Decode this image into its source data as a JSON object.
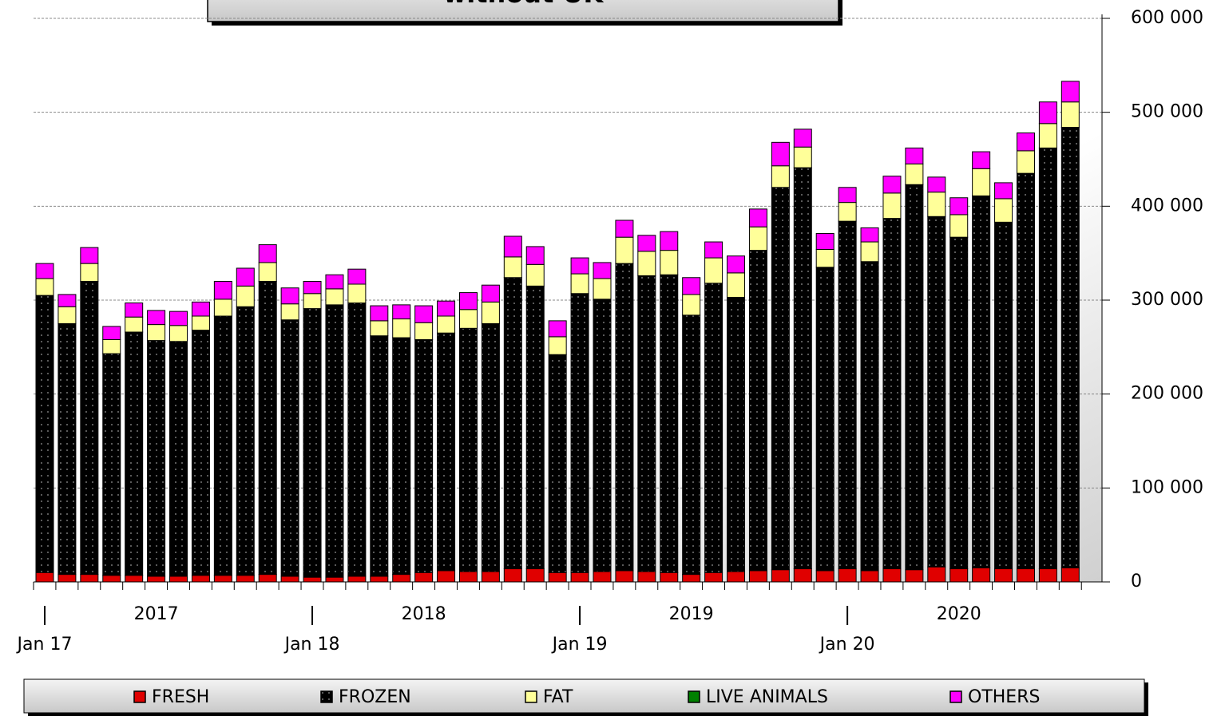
{
  "chart_data": {
    "type": "stacked_bar",
    "title": "without UK",
    "categories": [
      "Jan 17",
      null,
      null,
      null,
      null,
      null,
      null,
      null,
      null,
      null,
      null,
      null,
      "Jan 18",
      null,
      null,
      null,
      null,
      null,
      null,
      null,
      null,
      null,
      null,
      null,
      "Jan 19",
      null,
      null,
      null,
      null,
      null,
      null,
      null,
      null,
      null,
      null,
      null,
      "Jan 20",
      null,
      null,
      null,
      null,
      null,
      null,
      null,
      null,
      null,
      null
    ],
    "year_labels": [
      "2017",
      "2018",
      "2019",
      "2020"
    ],
    "series": [
      {
        "name": "FRESH",
        "color": "#e00000",
        "values": [
          10000,
          8000,
          8000,
          7000,
          7000,
          6000,
          6000,
          7000,
          7000,
          7000,
          8000,
          6000,
          5000,
          5000,
          6000,
          6000,
          8000,
          10000,
          12000,
          11000,
          11000,
          14000,
          14000,
          10000,
          10000,
          11000,
          12000,
          11000,
          10000,
          8000,
          10000,
          11000,
          12000,
          13000,
          14000,
          12000,
          14000,
          12000,
          14000,
          13000,
          16000,
          14000,
          15000,
          14000,
          14000,
          14000,
          15000
        ]
      },
      {
        "name": "FROZEN",
        "color": "#000000",
        "pattern": "dots",
        "values": [
          295000,
          267000,
          312000,
          236000,
          259000,
          251000,
          250000,
          261000,
          276000,
          286000,
          312000,
          273000,
          286000,
          290000,
          291000,
          256000,
          252000,
          248000,
          253000,
          259000,
          264000,
          310000,
          301000,
          232000,
          297000,
          290000,
          327000,
          315000,
          317000,
          276000,
          308000,
          292000,
          341000,
          407000,
          427000,
          323000,
          370000,
          329000,
          373000,
          410000,
          373000,
          353000,
          396000,
          369000,
          421000,
          448000,
          469000
        ]
      },
      {
        "name": "FAT",
        "color": "#ffff99",
        "values": [
          18000,
          18000,
          19000,
          15000,
          16000,
          17000,
          17000,
          15000,
          18000,
          22000,
          20000,
          17000,
          16000,
          17000,
          20000,
          16000,
          20000,
          18000,
          18000,
          20000,
          23000,
          22000,
          23000,
          19000,
          21000,
          22000,
          28000,
          26000,
          26000,
          22000,
          27000,
          26000,
          25000,
          23000,
          22000,
          19000,
          20000,
          21000,
          27000,
          22000,
          26000,
          24000,
          29000,
          25000,
          24000,
          26000,
          27000
        ]
      },
      {
        "name": "LIVE ANIMALS",
        "color": "#008000",
        "values": [
          0,
          0,
          0,
          0,
          0,
          0,
          0,
          0,
          0,
          0,
          0,
          0,
          0,
          0,
          0,
          0,
          0,
          0,
          0,
          0,
          0,
          0,
          0,
          0,
          0,
          0,
          0,
          0,
          0,
          0,
          0,
          0,
          0,
          0,
          0,
          0,
          0,
          0,
          0,
          0,
          0,
          0,
          0,
          0,
          0,
          0,
          0
        ]
      },
      {
        "name": "OTHERS",
        "color": "#ff00ff",
        "values": [
          16000,
          13000,
          17000,
          14000,
          15000,
          15000,
          15000,
          15000,
          19000,
          19000,
          19000,
          17000,
          13000,
          15000,
          16000,
          16000,
          15000,
          18000,
          16000,
          18000,
          18000,
          22000,
          19000,
          17000,
          17000,
          17000,
          18000,
          17000,
          20000,
          18000,
          17000,
          18000,
          19000,
          25000,
          19000,
          17000,
          16000,
          15000,
          18000,
          17000,
          16000,
          18000,
          18000,
          17000,
          19000,
          23000,
          22000
        ]
      }
    ],
    "ylim": [
      0,
      600000
    ],
    "yticks": [
      0,
      {
        "value": 100000,
        "label": "100 000"
      },
      {
        "value": 200000,
        "label": "200 000"
      },
      {
        "value": 300000,
        "label": "300 000"
      },
      {
        "value": 400000,
        "label": "400 000"
      },
      {
        "value": 500000,
        "label": "500 000"
      },
      {
        "value": 600000,
        "label": "600 000"
      }
    ],
    "grid": true,
    "y_axis_side": "right",
    "legend": "bottom"
  }
}
